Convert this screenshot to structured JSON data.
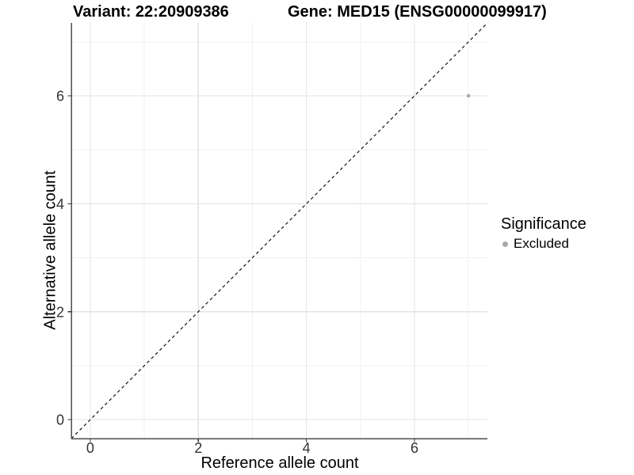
{
  "chart_data": {
    "type": "scatter",
    "title_left": "Variant: 22:20909386",
    "title_right": "Gene: MED15 (ENSG00000099917)",
    "xlabel": "Reference allele count",
    "ylabel": "Alternative allele count",
    "xlim": [
      -0.35,
      7.35
    ],
    "ylim": [
      -0.35,
      7.35
    ],
    "x_ticks": [
      0,
      2,
      4,
      6
    ],
    "y_ticks": [
      0,
      2,
      4,
      6
    ],
    "x_minor_gridlines": [
      1,
      3,
      5,
      7
    ],
    "y_minor_gridlines": [
      1,
      3,
      5,
      7
    ],
    "grid": true,
    "legend": {
      "title": "Significance",
      "position": "right"
    },
    "series": [
      {
        "name": "Excluded",
        "color": "#aaaaaa",
        "points": [
          {
            "x": 7,
            "y": 6
          }
        ]
      }
    ],
    "identity_line": {
      "slope": 1,
      "intercept": 0,
      "style": "dashed",
      "color": "#000000"
    }
  },
  "style": {
    "background": "#ffffff",
    "major_grid_color": "#e3e3e3",
    "minor_grid_color": "#f0f0f0",
    "axis_line_color": "#4d4d4d",
    "tick_color": "#333333",
    "tick_label_color": "#333333",
    "text_color": "#000000"
  }
}
